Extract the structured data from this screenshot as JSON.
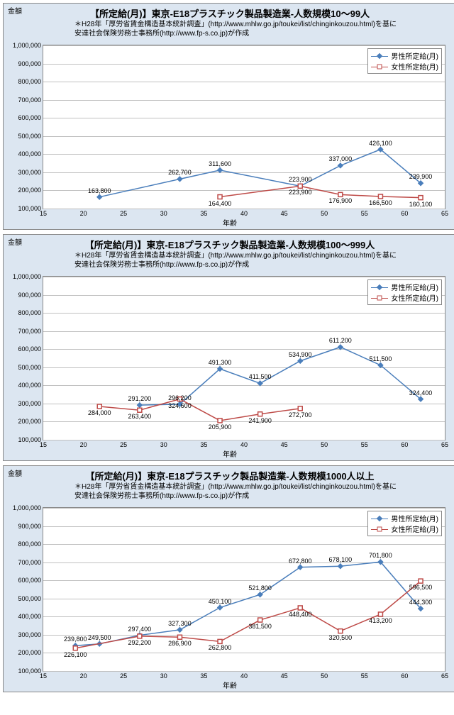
{
  "subtitle_line1": "＊H28年「厚労省賃金構造基本統計調査」(http://www.mhlw.go.jp/toukei/list/chinginkouzou.html)を基に",
  "subtitle_line2": "安達社会保険労務士事務所(http://www.fp-s.co.jp)が作成",
  "y_axis_title": "金額",
  "x_axis_title": "年齢",
  "legend_male": "男性所定給(月)",
  "legend_female": "女性所定給(月)",
  "xlim": [
    15,
    65
  ],
  "ylim": [
    100000,
    1000000
  ],
  "ytick_step": 100000,
  "xtick_step": 5,
  "colors": {
    "male_line": "#4a7ebb",
    "female_line": "#be4b48",
    "background": "#dce6f1",
    "plot_bg": "#ffffff",
    "grid": "#c0c0c0"
  },
  "charts": [
    {
      "title": "【所定給(月)】東京-E18プラスチック製品製造業-人数規模10～99人",
      "male": [
        [
          22,
          163800
        ],
        [
          32,
          262700
        ],
        [
          37,
          311600
        ],
        [
          47,
          223900
        ],
        [
          52,
          337000
        ],
        [
          57,
          426100
        ],
        [
          62,
          239900
        ]
      ],
      "female": [
        [
          37,
          164400
        ],
        [
          47,
          223900
        ],
        [
          52,
          176900
        ],
        [
          57,
          166500
        ],
        [
          62,
          160100
        ]
      ],
      "male_label_pos": "above",
      "female_label_pos": "below"
    },
    {
      "title": "【所定給(月)】東京-E18プラスチック製品製造業-人数規模100～999人",
      "male": [
        [
          27,
          291200
        ],
        [
          32,
          296200
        ],
        [
          37,
          491300
        ],
        [
          42,
          411500
        ],
        [
          47,
          534900
        ],
        [
          52,
          611200
        ],
        [
          57,
          511500
        ],
        [
          62,
          324400
        ]
      ],
      "female": [
        [
          22,
          284000
        ],
        [
          27,
          263400
        ],
        [
          32,
          324600
        ],
        [
          37,
          205900
        ],
        [
          42,
          241900
        ],
        [
          47,
          272700
        ]
      ],
      "male_label_pos": "above",
      "female_label_pos": "below"
    },
    {
      "title": "【所定給(月)】東京-E18プラスチック製品製造業-人数規模1000人以上",
      "male": [
        [
          19,
          239800
        ],
        [
          22,
          249500
        ],
        [
          27,
          297400
        ],
        [
          32,
          327300
        ],
        [
          37,
          450100
        ],
        [
          42,
          521800
        ],
        [
          47,
          672800
        ],
        [
          52,
          678100
        ],
        [
          57,
          701800
        ],
        [
          62,
          444300
        ]
      ],
      "female": [
        [
          19,
          226100
        ],
        [
          27,
          292200
        ],
        [
          32,
          286900
        ],
        [
          37,
          262800
        ],
        [
          42,
          381500
        ],
        [
          47,
          448400
        ],
        [
          52,
          320500
        ],
        [
          57,
          413200
        ],
        [
          62,
          596500
        ]
      ],
      "male_label_pos": "above",
      "female_label_pos": "below"
    }
  ]
}
